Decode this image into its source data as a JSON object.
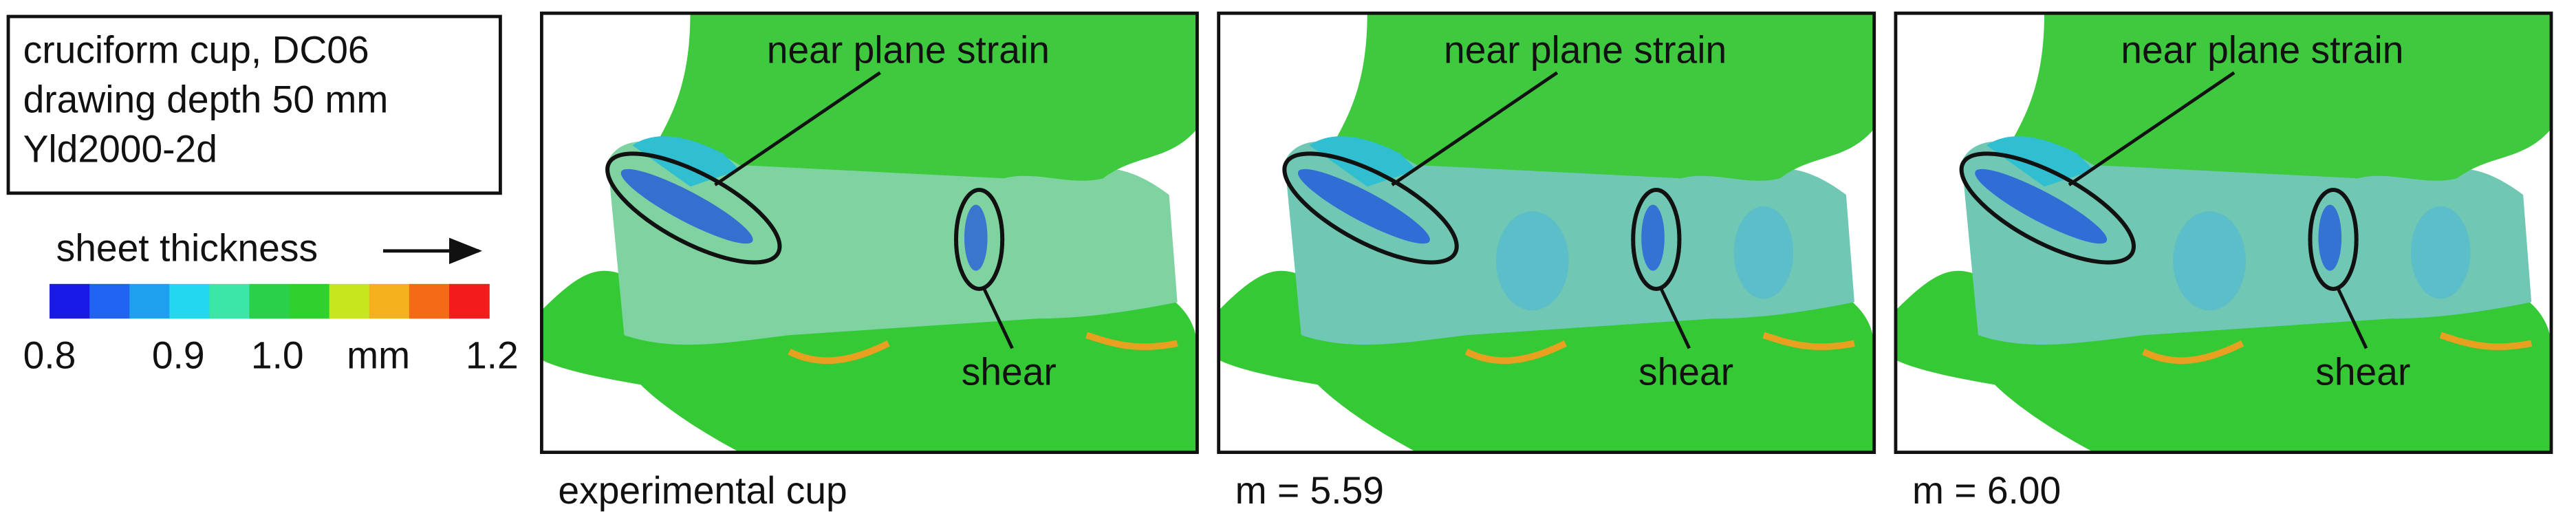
{
  "info_box": {
    "lines": [
      "cruciform cup, DC06",
      "drawing depth 50 mm",
      "Yld2000-2d"
    ]
  },
  "colorbar": {
    "label": "sheet thickness",
    "tick_labels": [
      "0.8",
      "0.9",
      "1.0",
      "mm",
      "1.2"
    ]
  },
  "panels": [
    {
      "caption": "experimental cup",
      "annotations": [
        "near plane strain",
        "shear"
      ]
    },
    {
      "caption": "m = 5.59",
      "annotations": [
        "near plane strain",
        "shear"
      ]
    },
    {
      "caption": "m = 6.00",
      "annotations": [
        "near plane strain",
        "shear"
      ]
    }
  ]
}
